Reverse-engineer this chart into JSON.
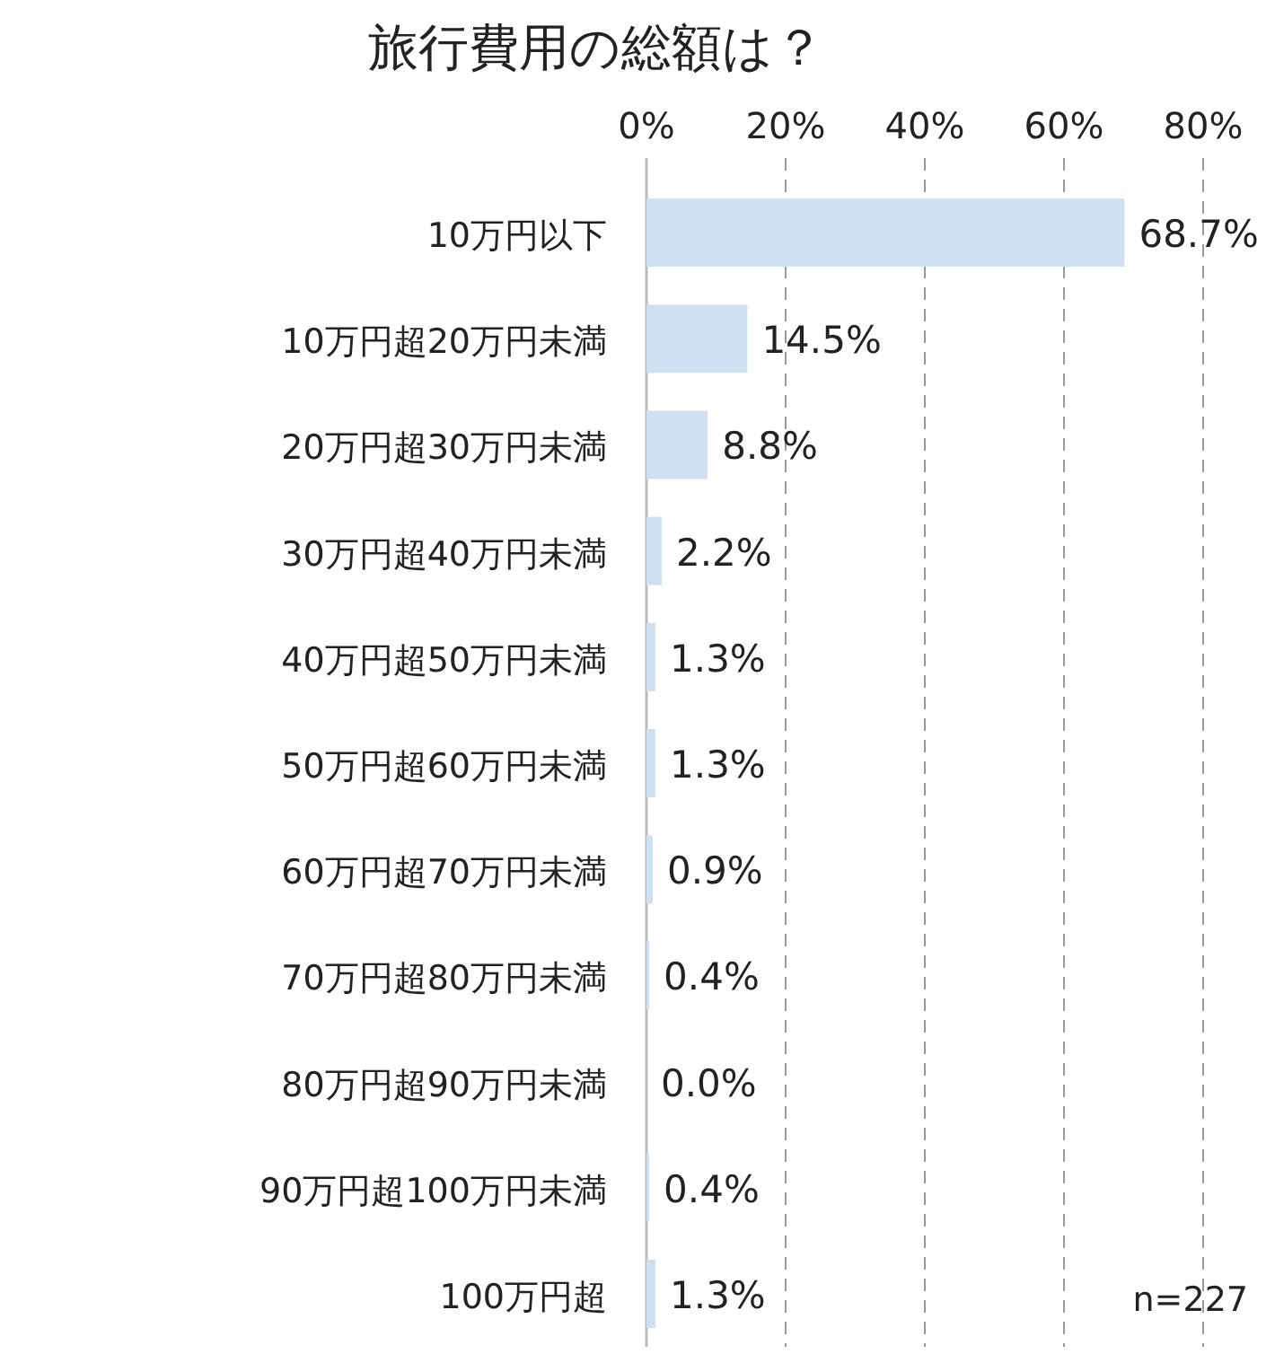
{
  "chart_data": {
    "type": "bar",
    "orientation": "horizontal",
    "title": "旅行費用の総額は？",
    "categories": [
      "10万円以下",
      "10万円超20万円未満",
      "20万円超30万円未満",
      "30万円超40万円未満",
      "40万円超50万円未満",
      "50万円超60万円未満",
      "60万円超70万円未満",
      "70万円超80万円未満",
      "80万円超90万円未満",
      "90万円超100万円未満",
      "100万円超"
    ],
    "values": [
      68.7,
      14.5,
      8.8,
      2.2,
      1.3,
      1.3,
      0.9,
      0.4,
      0.0,
      0.4,
      1.3
    ],
    "value_labels": [
      "68.7%",
      "14.5%",
      "8.8%",
      "2.2%",
      "1.3%",
      "1.3%",
      "0.9%",
      "0.4%",
      "0.0%",
      "0.4%",
      "1.3%"
    ],
    "color": "#cfe0f2",
    "xlim": [
      0,
      80
    ],
    "xticks": [
      {
        "value": 0,
        "label": "0%"
      },
      {
        "value": 20,
        "label": "20%"
      },
      {
        "value": 40,
        "label": "40%"
      },
      {
        "value": 60,
        "label": "60%"
      },
      {
        "value": 80,
        "label": "80%"
      }
    ],
    "grid": "x",
    "annotations": [
      "n=227"
    ]
  }
}
